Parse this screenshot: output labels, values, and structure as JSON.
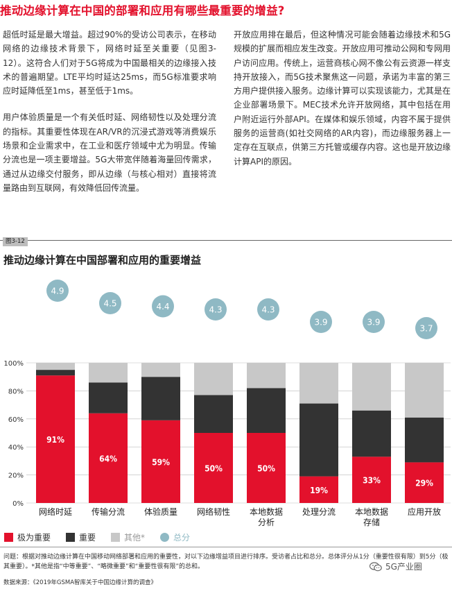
{
  "heading": "推动边缘计算在中国的部署和应用有哪些最重要的增益?",
  "left_paragraphs": [
    "超低时延是最大增益。超过90%的受访公司表示，在移动网络的边缘技术背景下，网络时延至关重要（见图3-12）。这符合人们对于5G将成为中国最相关的边缘接入技术的普遍期望。LTE平均时延达25ms，而5G标准要求响应时延降低至1ms，甚至低于1ms。",
    "用户体验质量是一个有关低时延、网络韧性以及处理分流的指标。其重要性体现在AR/VR的沉浸式游戏等消费娱乐场景和企业需求中，在工业和医疗领域中尤为明显。传输分流也是一项主要增益。5G大带宽伴随着海量回传需求，通过从边缘交付服务，即从边缘（与核心相对）直接将流量路由到互联网，有效降低回传流量。"
  ],
  "right_paragraphs": [
    "开放应用排在最后，但这种情况可能会随着边缘技术和5G规模的扩展而相应发生改变。开放应用可推动公网和专网用户访问应用。传统上，运营商核心网不像公有云资源一样支持开放接入，而5G技术聚焦这一问题，承诺为丰富的第三方用户提供接入服务。边缘计算可以实现该能力，尤其是在企业部署场景下。MEC技术允许开放网络，其中包括在用户附近运行外部API。在媒体和娱乐领域，内容不属于提供服务的运营商(如社交网络的AR内容)，而边缘服务器上一定存在互联点，供第三方托管或缓存内容。这也是开放边缘计算API的原因。"
  ],
  "figure_label": "图3-12",
  "chart_data": {
    "type": "bar",
    "stacked": true,
    "title": "推动边缘计算在中国部署和应用的重要增益",
    "categories": [
      [
        "网络时延"
      ],
      [
        "传输分流"
      ],
      [
        "体验质量"
      ],
      [
        "网络韧性"
      ],
      [
        "本地数据",
        "分析"
      ],
      [
        "处理分流"
      ],
      [
        "本地数据",
        "存储"
      ],
      [
        "应用开放"
      ]
    ],
    "series": [
      {
        "name": "极为重要",
        "color": "#e3112c",
        "values": [
          91,
          64,
          59,
          50,
          50,
          19,
          33,
          29
        ],
        "labels": [
          "91%",
          "64%",
          "59%",
          "50%",
          "50%",
          "19%",
          "33%",
          "29%"
        ]
      },
      {
        "name": "重要",
        "color": "#333333",
        "values": [
          4,
          22,
          31,
          27,
          32,
          52,
          33,
          32
        ]
      },
      {
        "name": "其他*",
        "color": "#c8c8c8",
        "values": [
          5,
          14,
          10,
          23,
          18,
          29,
          34,
          39
        ]
      }
    ],
    "totals": {
      "name": "总分",
      "color": "#8fb9c4",
      "values": [
        "4.9",
        "4.5",
        "4.4",
        "4.3",
        "4.3",
        "3.9",
        "3.9",
        "3.7"
      ]
    },
    "ylim": [
      0,
      100
    ],
    "y_ticks": [
      "0%",
      "20%",
      "40%",
      "60%",
      "80%",
      "100%"
    ],
    "grid": true,
    "legend_position": "bottom-left"
  },
  "legend": {
    "very_important": "极为重要",
    "important": "重要",
    "other": "其他*",
    "total": "总分"
  },
  "note": "问题：根据对推动边缘计算在中国移动网络部署和应用的重要性，对以下边缘增益项目进行排序。受访者占比和总分。总体评分从1分（重要性很有限）到5分（极其重要）。*其他是指“中等重要”、“略微重要”和“重要性很有限”的总和。",
  "source": "数据来源：《2019年GSMA智库关于中国边缘计算的调查》",
  "watermark": "5G产业圈",
  "colors": {
    "accent_red": "#e3112c",
    "teal": "#8fb9c4",
    "dark": "#333333",
    "gray": "#c8c8c8"
  }
}
